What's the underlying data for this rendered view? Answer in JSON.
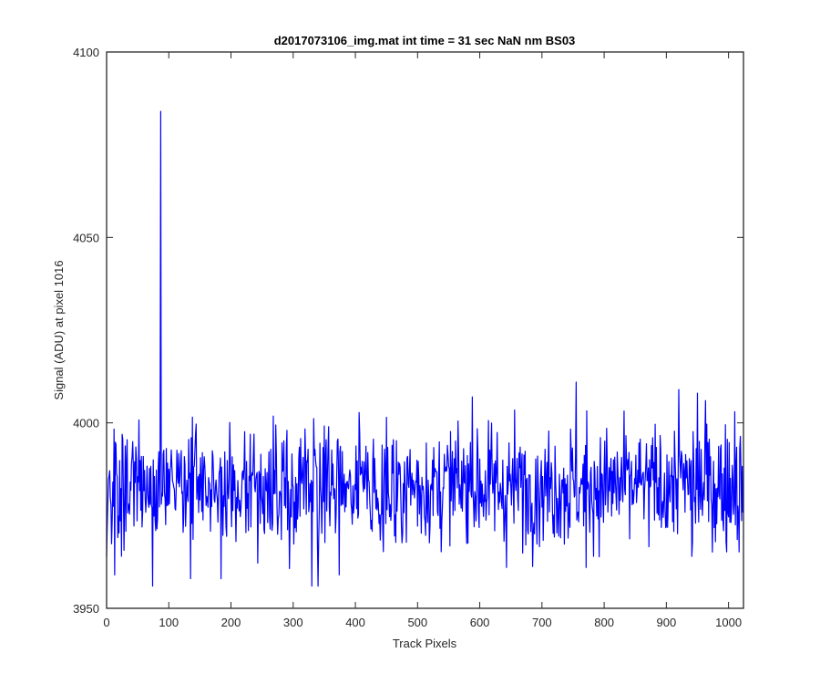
{
  "chart_data": {
    "type": "line",
    "title": "d2017073106_img.mat int time = 31 sec  NaN nm BS03",
    "xlabel": "Track Pixels",
    "ylabel": "Signal (ADU) at pixel 1016",
    "xlim": [
      0,
      1024
    ],
    "ylim": [
      3950,
      4100
    ],
    "xticks": [
      0,
      100,
      200,
      300,
      400,
      500,
      600,
      700,
      800,
      900,
      1000
    ],
    "yticks": [
      3950,
      4000,
      4050,
      4100
    ],
    "xtick_labels": [
      "0",
      "100",
      "200",
      "300",
      "400",
      "500",
      "600",
      "700",
      "800",
      "900",
      "1000"
    ],
    "ytick_labels": [
      "3950",
      "4000",
      "4050",
      "4100"
    ],
    "grid": false,
    "line_color": "#0000ff",
    "series": [
      {
        "n_points": 1024,
        "baseline": 3983,
        "noise_std": 8,
        "spikes": [
          {
            "x": 87,
            "y": 4084
          },
          {
            "x": 74,
            "y": 3956
          },
          {
            "x": 330,
            "y": 3956
          },
          {
            "x": 340,
            "y": 3956
          },
          {
            "x": 755,
            "y": 4011
          },
          {
            "x": 588,
            "y": 4007
          },
          {
            "x": 950,
            "y": 4008
          },
          {
            "x": 963,
            "y": 4006
          },
          {
            "x": 1010,
            "y": 4003
          },
          {
            "x": 920,
            "y": 4009
          },
          {
            "x": 771,
            "y": 3961
          },
          {
            "x": 643,
            "y": 3961
          },
          {
            "x": 135,
            "y": 3958
          },
          {
            "x": 184,
            "y": 3958
          },
          {
            "x": 374,
            "y": 3959
          },
          {
            "x": 13,
            "y": 3959
          },
          {
            "x": 941,
            "y": 3964
          }
        ]
      }
    ]
  }
}
